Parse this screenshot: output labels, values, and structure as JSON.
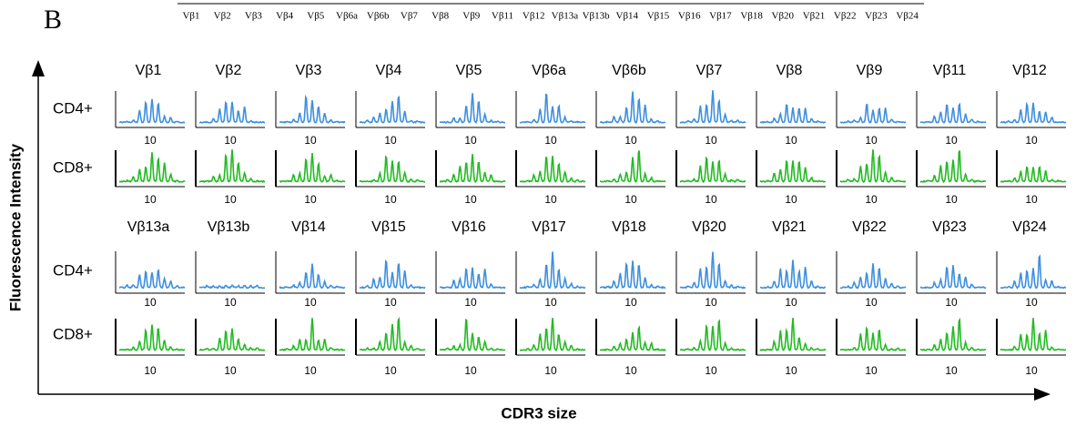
{
  "panel_label": "B",
  "top_strip": [
    "Vβ1",
    "Vβ2",
    "Vβ3",
    "Vβ4",
    "Vβ5",
    "Vβ6a",
    "Vβ6b",
    "Vβ7",
    "Vβ8",
    "Vβ9",
    "Vβ11",
    "Vβ12",
    "Vβ13a",
    "Vβ13b",
    "Vβ14",
    "Vβ15",
    "Vβ16",
    "Vβ17",
    "Vβ18",
    "Vβ20",
    "Vβ21",
    "Vβ22",
    "Vβ23",
    "Vβ24"
  ],
  "y_axis_label": "Fluorescence Intensity",
  "x_axis_label": "CDR3 size",
  "groups": [
    {
      "row_labels": [
        "CD4+",
        "CD8+"
      ],
      "panels": [
        {
          "name": "Vβ1",
          "ticks": [
            "10",
            "10"
          ]
        },
        {
          "name": "Vβ2",
          "ticks": [
            "10",
            "10"
          ]
        },
        {
          "name": "Vβ3",
          "ticks": [
            "10",
            "10"
          ]
        },
        {
          "name": "Vβ4",
          "ticks": [
            "10",
            "10"
          ]
        },
        {
          "name": "Vβ5",
          "ticks": [
            "10",
            "10"
          ]
        },
        {
          "name": "Vβ6a",
          "ticks": [
            "10",
            "10"
          ]
        },
        {
          "name": "Vβ6b",
          "ticks": [
            "10",
            "10"
          ]
        },
        {
          "name": "Vβ7",
          "ticks": [
            "10",
            "10"
          ]
        },
        {
          "name": "Vβ8",
          "ticks": [
            "10",
            "10"
          ]
        },
        {
          "name": "Vβ9",
          "ticks": [
            "10",
            "10"
          ]
        },
        {
          "name": "Vβ11",
          "ticks": [
            "10",
            "10"
          ]
        },
        {
          "name": "Vβ12",
          "ticks": [
            "10",
            "10"
          ]
        }
      ]
    },
    {
      "row_labels": [
        "CD4+",
        "CD8+"
      ],
      "panels": [
        {
          "name": "Vβ13a",
          "ticks": [
            "10",
            "10"
          ]
        },
        {
          "name": "Vβ13b",
          "ticks": [
            "10",
            "10"
          ]
        },
        {
          "name": "Vβ14",
          "ticks": [
            "10",
            "10"
          ]
        },
        {
          "name": "Vβ15",
          "ticks": [
            "10",
            "10"
          ]
        },
        {
          "name": "Vβ16",
          "ticks": [
            "10",
            "10"
          ]
        },
        {
          "name": "Vβ17",
          "ticks": [
            "10",
            "10"
          ]
        },
        {
          "name": "Vβ18",
          "ticks": [
            "10",
            "10"
          ]
        },
        {
          "name": "Vβ20",
          "ticks": [
            "10",
            "10"
          ]
        },
        {
          "name": "Vβ21",
          "ticks": [
            "10",
            "10"
          ]
        },
        {
          "name": "Vβ22",
          "ticks": [
            "10",
            "10"
          ]
        },
        {
          "name": "Vβ23",
          "ticks": [
            "10",
            "10"
          ]
        },
        {
          "name": "Vβ24",
          "ticks": [
            "10",
            "10"
          ]
        }
      ]
    }
  ]
}
